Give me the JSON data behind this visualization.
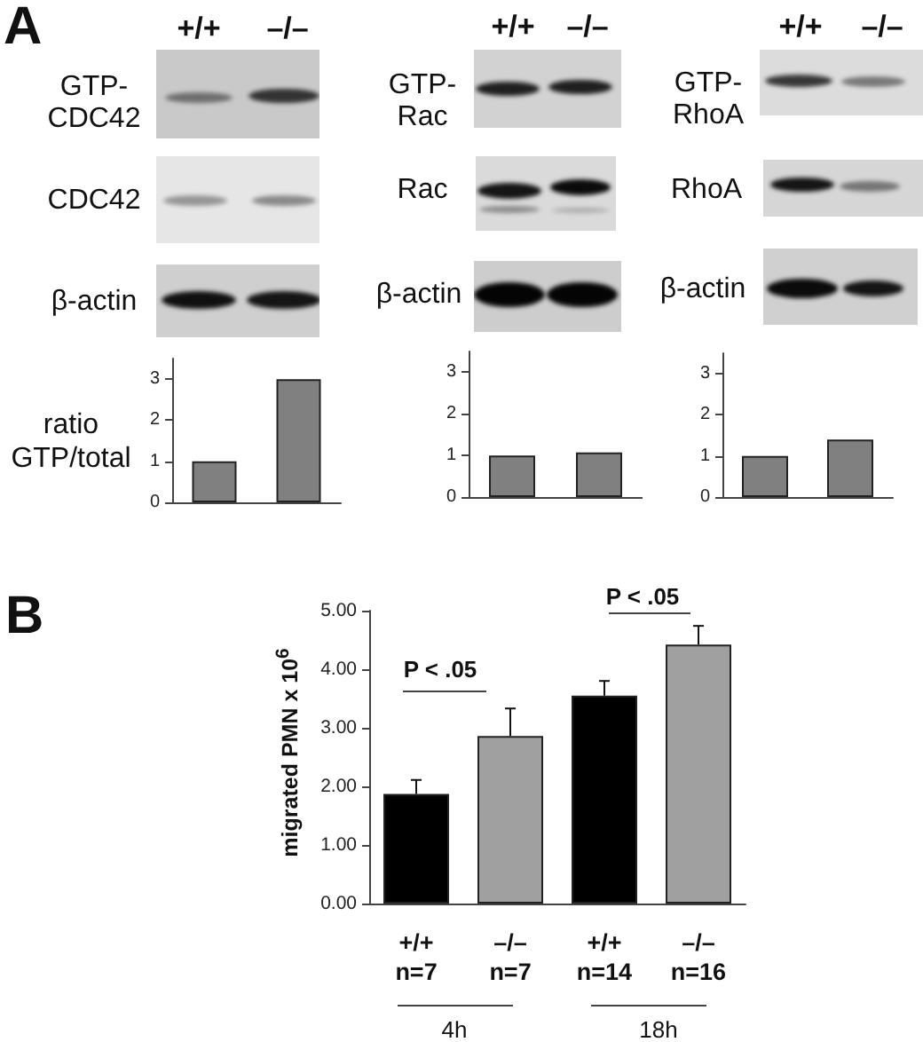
{
  "chart_data": [
    {
      "type": "bar",
      "ylabel": "ratio\nGTP/total",
      "annotations": [
        "A",
        "+/+",
        "–/–",
        "GTP-\nCDC42",
        "CDC42",
        "β-actin"
      ],
      "categories": [
        null,
        null
      ],
      "values": [
        1,
        3
      ],
      "color": "#808080",
      "ylim": [
        0,
        3.5
      ],
      "yticks": [
        0,
        1,
        2,
        3
      ]
    },
    {
      "type": "bar",
      "annotations": [
        "+/+",
        "–/–",
        "GTP-\nRac",
        "Rac",
        "β-actin"
      ],
      "categories": [
        null,
        null
      ],
      "values": [
        1,
        1.07
      ],
      "color": "#808080",
      "ylim": [
        0,
        3.5
      ],
      "yticks": [
        0,
        1,
        2,
        3
      ]
    },
    {
      "type": "bar",
      "annotations": [
        "+/+",
        "–/–",
        "GTP-\nRhoA",
        "RhoA",
        "β-actin"
      ],
      "categories": [
        null,
        null
      ],
      "values": [
        1,
        1.4
      ],
      "color": "#808080",
      "ylim": [
        0,
        3.5
      ],
      "yticks": [
        0,
        1,
        2,
        3
      ]
    },
    {
      "type": "bar",
      "ylabel": "migrated PMN x 10$^{6}$",
      "annotations": [
        "B",
        "P < .05",
        "P < .05",
        "4h",
        "18h"
      ],
      "categories": [
        "+/+\nn=7",
        "–/–\nn=7",
        "+/+\nn=14",
        "–/–\nn=16"
      ],
      "values": [
        1.87,
        2.86,
        3.55,
        4.42
      ],
      "colors": [
        "#000000",
        "#a0a0a0",
        "#000000",
        "#a0a0a0"
      ],
      "errors": [
        [
          1.87,
          2.11
        ],
        [
          2.86,
          3.33
        ],
        [
          3.55,
          3.8
        ],
        [
          4.42,
          4.74
        ]
      ],
      "ylim": [
        0,
        5
      ],
      "yticks": [
        {
          "value": 0,
          "label": "0.00"
        },
        {
          "value": 1,
          "label": "1.00"
        },
        {
          "value": 2,
          "label": "2.00"
        },
        {
          "value": 3,
          "label": "3.00"
        },
        {
          "value": 4,
          "label": "4.00"
        },
        {
          "value": 5,
          "label": "5.00"
        }
      ]
    }
  ]
}
